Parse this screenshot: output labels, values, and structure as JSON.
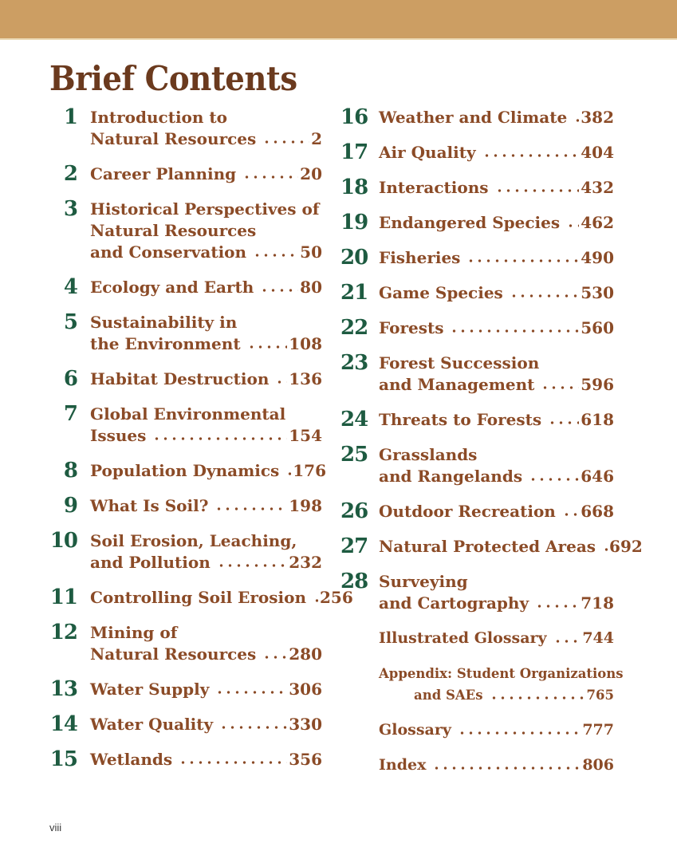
{
  "page": {
    "title": "Brief Contents",
    "folio": "viii"
  },
  "colors": {
    "band": "#CC9E63",
    "band_edge": "#EBD8B4",
    "title": "#6B3A1E",
    "chapter_number": "#1E5B41",
    "entry_text": "#8B4B27"
  },
  "left_column": [
    {
      "num": "1",
      "lines": [
        "Introduction to",
        "Natural Resources"
      ],
      "page": "2"
    },
    {
      "num": "2",
      "lines": [
        "Career Planning"
      ],
      "page": "20"
    },
    {
      "num": "3",
      "lines": [
        "Historical Perspectives of",
        "Natural Resources",
        "and Conservation"
      ],
      "page": "50"
    },
    {
      "num": "4",
      "lines": [
        "Ecology and Earth"
      ],
      "page": "80"
    },
    {
      "num": "5",
      "lines": [
        "Sustainability in",
        "the Environment"
      ],
      "page": "108"
    },
    {
      "num": "6",
      "lines": [
        "Habitat Destruction"
      ],
      "page": "136"
    },
    {
      "num": "7",
      "lines": [
        "Global Environmental",
        "Issues"
      ],
      "page": "154"
    },
    {
      "num": "8",
      "lines": [
        "Population Dynamics"
      ],
      "page": "176"
    },
    {
      "num": "9",
      "lines": [
        "What Is Soil?"
      ],
      "page": "198"
    },
    {
      "num": "10",
      "lines": [
        "Soil Erosion, Leaching,",
        "and Pollution"
      ],
      "page": "232"
    },
    {
      "num": "11",
      "lines": [
        "Controlling Soil Erosion"
      ],
      "page": "256"
    },
    {
      "num": "12",
      "lines": [
        "Mining of",
        "Natural Resources"
      ],
      "page": "280"
    },
    {
      "num": "13",
      "lines": [
        "Water Supply"
      ],
      "page": "306"
    },
    {
      "num": "14",
      "lines": [
        "Water Quality"
      ],
      "page": "330"
    },
    {
      "num": "15",
      "lines": [
        "Wetlands"
      ],
      "page": "356"
    }
  ],
  "right_column": [
    {
      "num": "16",
      "lines": [
        "Weather and Climate"
      ],
      "page": "382"
    },
    {
      "num": "17",
      "lines": [
        "Air Quality"
      ],
      "page": "404"
    },
    {
      "num": "18",
      "lines": [
        "Interactions"
      ],
      "page": "432"
    },
    {
      "num": "19",
      "lines": [
        "Endangered Species"
      ],
      "page": "462"
    },
    {
      "num": "20",
      "lines": [
        "Fisheries"
      ],
      "page": "490"
    },
    {
      "num": "21",
      "lines": [
        "Game Species"
      ],
      "page": "530"
    },
    {
      "num": "22",
      "lines": [
        "Forests"
      ],
      "page": "560"
    },
    {
      "num": "23",
      "lines": [
        "Forest Succession",
        "and Management"
      ],
      "page": "596"
    },
    {
      "num": "24",
      "lines": [
        "Threats to Forests"
      ],
      "page": "618"
    },
    {
      "num": "25",
      "lines": [
        "Grasslands",
        "and Rangelands"
      ],
      "page": "646"
    },
    {
      "num": "26",
      "lines": [
        "Outdoor Recreation"
      ],
      "page": "668"
    },
    {
      "num": "27",
      "lines": [
        "Natural Protected Areas"
      ],
      "page": "692"
    },
    {
      "num": "28",
      "lines": [
        "Surveying",
        "and Cartography"
      ],
      "page": "718"
    }
  ],
  "back_matter": [
    {
      "lines": [
        "Illustrated Glossary"
      ],
      "page": "744"
    },
    {
      "lines": [
        "Appendix: Student Organizations",
        "and SAEs"
      ],
      "page": "765",
      "small": true,
      "indent": true
    },
    {
      "lines": [
        "Glossary"
      ],
      "page": "777"
    },
    {
      "lines": [
        "Index"
      ],
      "page": "806"
    }
  ]
}
